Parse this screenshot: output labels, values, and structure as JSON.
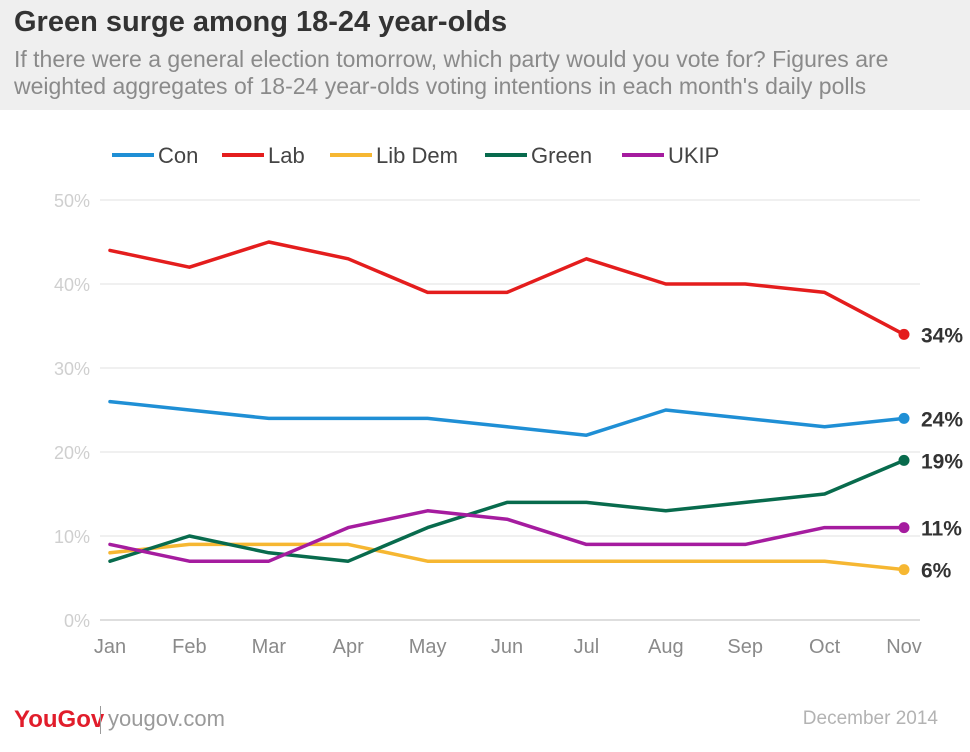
{
  "header": {
    "title": "Green surge among 18-24 year-olds",
    "subtitle": "If there were a general election tomorrow, which party would you vote for? Figures are weighted aggregates of 18-24 year-olds voting intentions in each month's daily polls"
  },
  "footer": {
    "brand": "YouGov",
    "site": "yougov.com",
    "date": "December 2014"
  },
  "chart_data": {
    "type": "line",
    "title": "Green surge among 18-24 year-olds",
    "xlabel": "",
    "ylabel": "",
    "categories": [
      "Jan",
      "Feb",
      "Mar",
      "Apr",
      "May",
      "Jun",
      "Jul",
      "Aug",
      "Sep",
      "Oct",
      "Nov"
    ],
    "ylim": [
      0,
      50
    ],
    "yticks": [
      0,
      10,
      20,
      30,
      40,
      50
    ],
    "ytick_labels": [
      "0%",
      "10%",
      "20%",
      "30%",
      "40%",
      "50%"
    ],
    "grid": true,
    "legend_position": "top-left",
    "series": [
      {
        "name": "Con",
        "color": "#1f8fd5",
        "values": [
          26,
          25,
          24,
          24,
          24,
          23,
          22,
          25,
          24,
          23,
          24
        ],
        "end_label": "24%"
      },
      {
        "name": "Lab",
        "color": "#e41d1d",
        "values": [
          44,
          42,
          45,
          43,
          39,
          39,
          43,
          40,
          40,
          39,
          34
        ],
        "end_label": "34%"
      },
      {
        "name": "Lib Dem",
        "color": "#f6b732",
        "values": [
          8,
          9,
          9,
          9,
          7,
          7,
          7,
          7,
          7,
          7,
          6
        ],
        "end_label": "6%"
      },
      {
        "name": "Green",
        "color": "#086b4d",
        "values": [
          7,
          10,
          8,
          7,
          11,
          14,
          14,
          13,
          14,
          15,
          19
        ],
        "end_label": "19%"
      },
      {
        "name": "UKIP",
        "color": "#a51c9f",
        "values": [
          9,
          7,
          7,
          11,
          13,
          12,
          9,
          9,
          9,
          11,
          11
        ],
        "end_label": "11%"
      }
    ]
  }
}
